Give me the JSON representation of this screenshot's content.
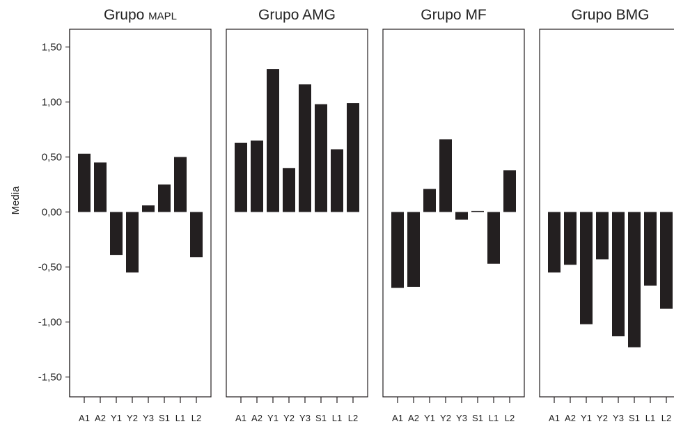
{
  "chart_data": {
    "type": "bar",
    "ylabel": "Media",
    "ylim": [
      -1.65,
      1.65
    ],
    "yticks": [
      {
        "value": 1.5,
        "label": "1,50"
      },
      {
        "value": 1.0,
        "label": "1,00"
      },
      {
        "value": 0.5,
        "label": "0,50"
      },
      {
        "value": 0.0,
        "label": "0,00"
      },
      {
        "value": -0.5,
        "label": "-0,50"
      },
      {
        "value": -1.0,
        "label": "-1,00"
      },
      {
        "value": -1.5,
        "label": "-1,50"
      }
    ],
    "categories": [
      "A1",
      "A2",
      "Y1",
      "Y2",
      "Y3",
      "S1",
      "L1",
      "L2"
    ],
    "bar_color": "#231f20",
    "panels": [
      {
        "title_prefix": "Grupo ",
        "title_suffix": "MAPL",
        "values": [
          0.53,
          0.45,
          -0.39,
          -0.55,
          0.06,
          0.25,
          0.5,
          -0.41
        ]
      },
      {
        "title_prefix": "Grupo ",
        "title_suffix": "AMG",
        "values": [
          0.63,
          0.65,
          1.3,
          0.4,
          1.16,
          0.98,
          0.57,
          0.99
        ]
      },
      {
        "title_prefix": "Grupo ",
        "title_suffix": "MF",
        "values": [
          -0.69,
          -0.68,
          0.21,
          0.66,
          -0.07,
          0.01,
          -0.47,
          0.38
        ]
      },
      {
        "title_prefix": "Grupo ",
        "title_suffix": "BMG",
        "values": [
          -0.55,
          -0.48,
          -1.02,
          -0.43,
          -1.13,
          -1.23,
          -0.67,
          -0.88
        ]
      }
    ]
  }
}
